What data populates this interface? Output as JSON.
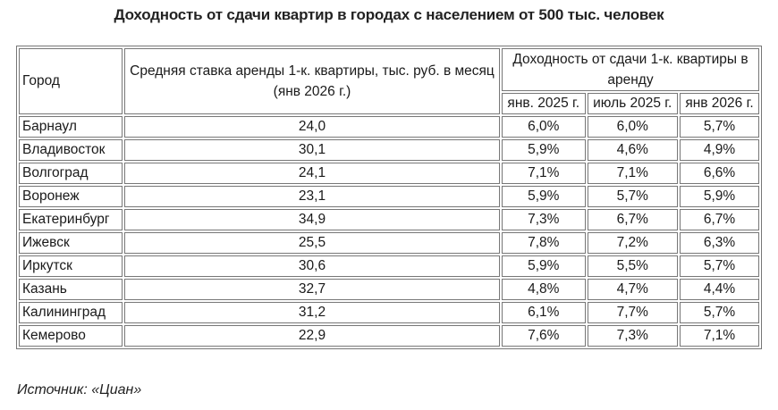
{
  "title": "Доходность от сдачи квартир в городах с населением от 500 тыс. человек",
  "table": {
    "headers": {
      "city": "Город",
      "rent": "Средняя ставка аренды 1-к. квартиры, тыс. руб. в месяц (янв 2026 г.)",
      "yield_group": "Доходность от сдачи 1-к. квартиры в аренду",
      "yield_periods": [
        "янв. 2025 г.",
        "июль 2025 г.",
        "янв 2026 г."
      ]
    },
    "rows": [
      {
        "city": "Барнаул",
        "rent": "24,0",
        "y1": "6,0%",
        "y2": "6,0%",
        "y3": "5,7%"
      },
      {
        "city": "Владивосток",
        "rent": "30,1",
        "y1": "5,9%",
        "y2": "4,6%",
        "y3": "4,9%"
      },
      {
        "city": "Волгоград",
        "rent": "24,1",
        "y1": "7,1%",
        "y2": "7,1%",
        "y3": "6,6%"
      },
      {
        "city": "Воронеж",
        "rent": "23,1",
        "y1": "5,9%",
        "y2": "5,7%",
        "y3": "5,9%"
      },
      {
        "city": "Екатеринбург",
        "rent": "34,9",
        "y1": "7,3%",
        "y2": "6,7%",
        "y3": "6,7%"
      },
      {
        "city": "Ижевск",
        "rent": "25,5",
        "y1": "7,8%",
        "y2": "7,2%",
        "y3": "6,3%"
      },
      {
        "city": "Иркутск",
        "rent": "30,6",
        "y1": "5,9%",
        "y2": "5,5%",
        "y3": "5,7%"
      },
      {
        "city": "Казань",
        "rent": "32,7",
        "y1": "4,8%",
        "y2": "4,7%",
        "y3": "4,4%"
      },
      {
        "city": "Калининград",
        "rent": "31,2",
        "y1": "6,1%",
        "y2": "7,7%",
        "y3": "5,7%"
      },
      {
        "city": "Кемерово",
        "rent": "22,9",
        "y1": "7,6%",
        "y2": "7,3%",
        "y3": "7,1%"
      }
    ]
  },
  "source": "Источник: «Циан»"
}
